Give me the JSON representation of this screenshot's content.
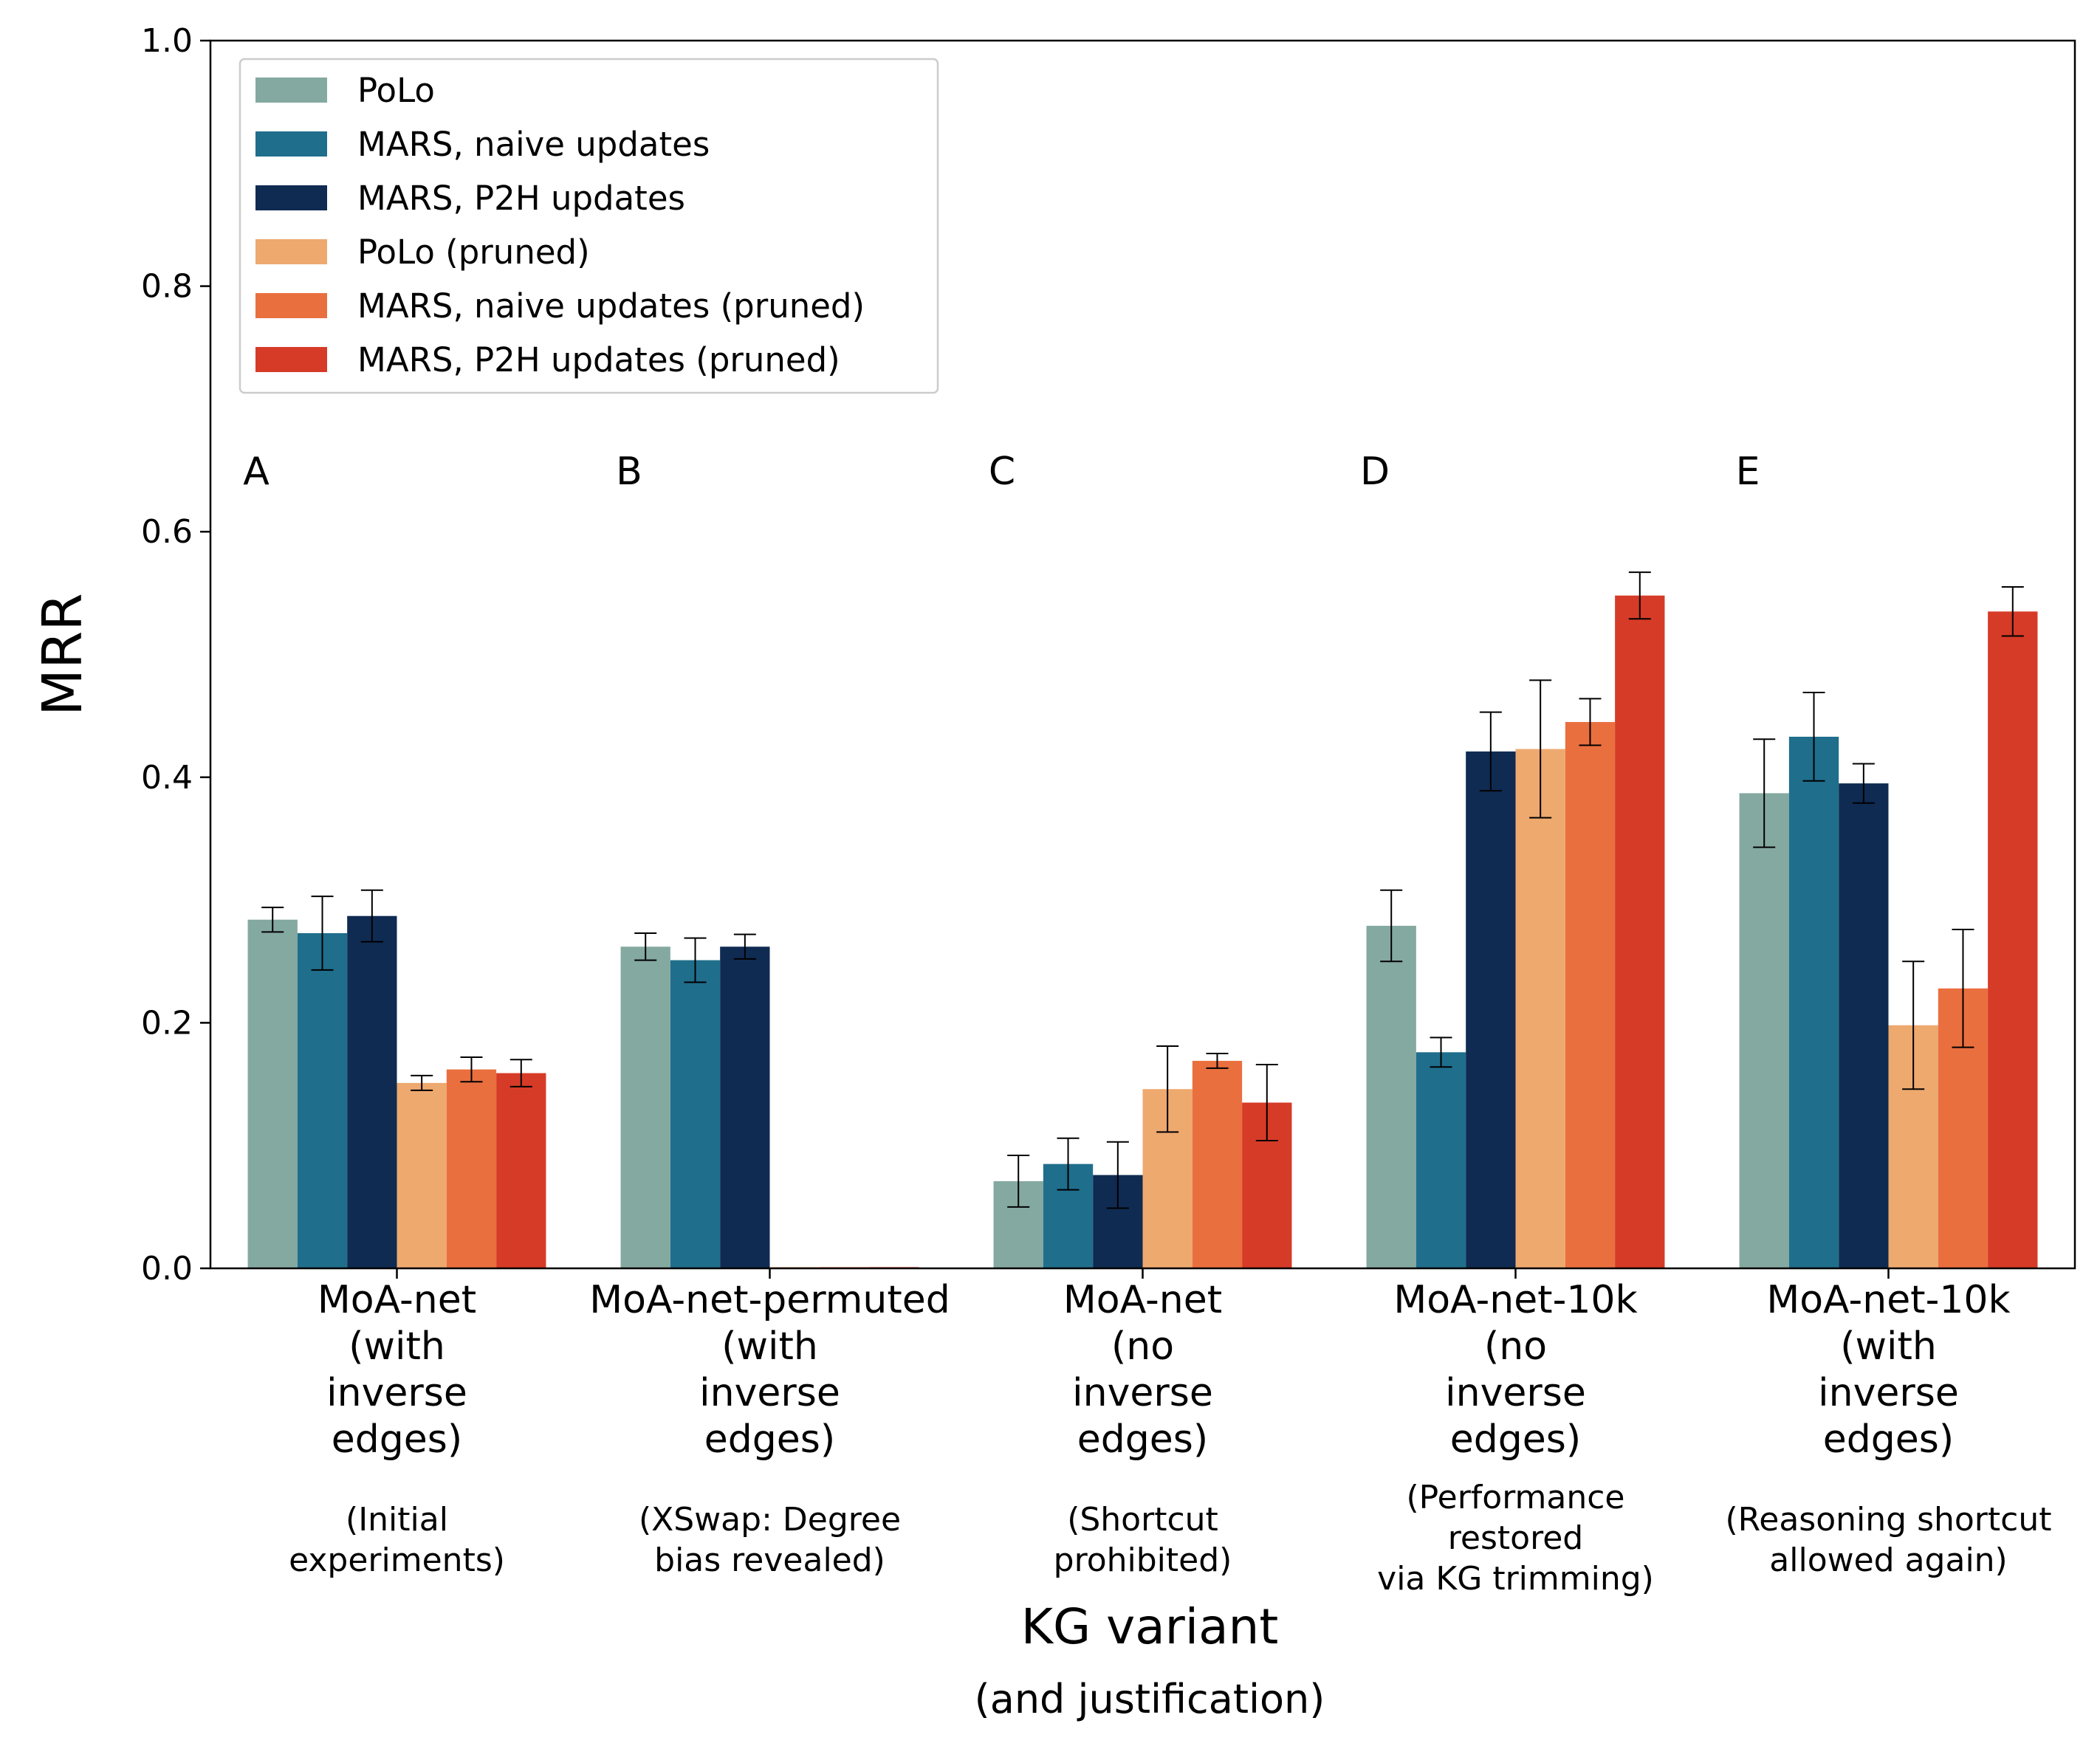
{
  "chart_data": {
    "type": "bar",
    "ylabel": "MRR",
    "xlabel": "KG variant",
    "xlabel_sub": "(and justification)",
    "ylim": [
      0.0,
      1.0
    ],
    "yticks": [
      "0.0",
      "0.2",
      "0.4",
      "0.6",
      "0.8",
      "1.0"
    ],
    "ytick_values": [
      0.0,
      0.2,
      0.4,
      0.6,
      0.8,
      1.0
    ],
    "legend_position": "top-left",
    "groups": [
      {
        "letter": "A",
        "name_lines": [
          "MoA-net",
          "(with",
          "inverse",
          "edges)"
        ],
        "justification_lines": [
          "(Initial",
          "experiments)"
        ]
      },
      {
        "letter": "B",
        "name_lines": [
          "MoA-net-permuted",
          "(with",
          "inverse",
          "edges)"
        ],
        "justification_lines": [
          "(XSwap: Degree",
          "bias revealed)"
        ]
      },
      {
        "letter": "C",
        "name_lines": [
          "MoA-net",
          "(no",
          "inverse",
          "edges)"
        ],
        "justification_lines": [
          "(Shortcut",
          "prohibited)"
        ]
      },
      {
        "letter": "D",
        "name_lines": [
          "MoA-net-10k",
          "(no",
          "inverse",
          "edges)"
        ],
        "justification_lines": [
          "(Performance",
          "restored",
          "via KG trimming)"
        ]
      },
      {
        "letter": "E",
        "name_lines": [
          "MoA-net-10k",
          "(with",
          "inverse",
          "edges)"
        ],
        "justification_lines": [
          "(Reasoning shortcut",
          "allowed again)"
        ]
      }
    ],
    "series": [
      {
        "name": "PoLo",
        "color": "#84a9a0",
        "values": [
          0.284,
          0.262,
          0.071,
          0.279,
          0.387
        ],
        "errors": [
          0.01,
          0.011,
          0.021,
          0.029,
          0.044
        ]
      },
      {
        "name": "MARS, naive updates",
        "color": "#1f6e8c",
        "values": [
          0.273,
          0.251,
          0.085,
          0.176,
          0.433
        ],
        "errors": [
          0.03,
          0.018,
          0.021,
          0.012,
          0.036
        ]
      },
      {
        "name": "MARS, P2H updates",
        "color": "#0f2b52",
        "values": [
          0.287,
          0.262,
          0.076,
          0.421,
          0.395
        ],
        "errors": [
          0.021,
          0.01,
          0.027,
          0.032,
          0.016
        ]
      },
      {
        "name": "PoLo (pruned)",
        "color": "#eea96f",
        "values": [
          0.151,
          0.001,
          0.146,
          0.423,
          0.198
        ],
        "errors": [
          0.006,
          0.0,
          0.035,
          0.056,
          0.052
        ]
      },
      {
        "name": "MARS, naive updates (pruned)",
        "color": "#ea6f3f",
        "values": [
          0.162,
          0.001,
          0.169,
          0.445,
          0.228
        ],
        "errors": [
          0.01,
          0.0,
          0.006,
          0.019,
          0.048
        ]
      },
      {
        "name": "MARS, P2H updates (pruned)",
        "color": "#d63b27",
        "values": [
          0.159,
          0.001,
          0.135,
          0.548,
          0.535
        ],
        "errors": [
          0.011,
          0.0,
          0.031,
          0.019,
          0.02
        ]
      }
    ]
  }
}
